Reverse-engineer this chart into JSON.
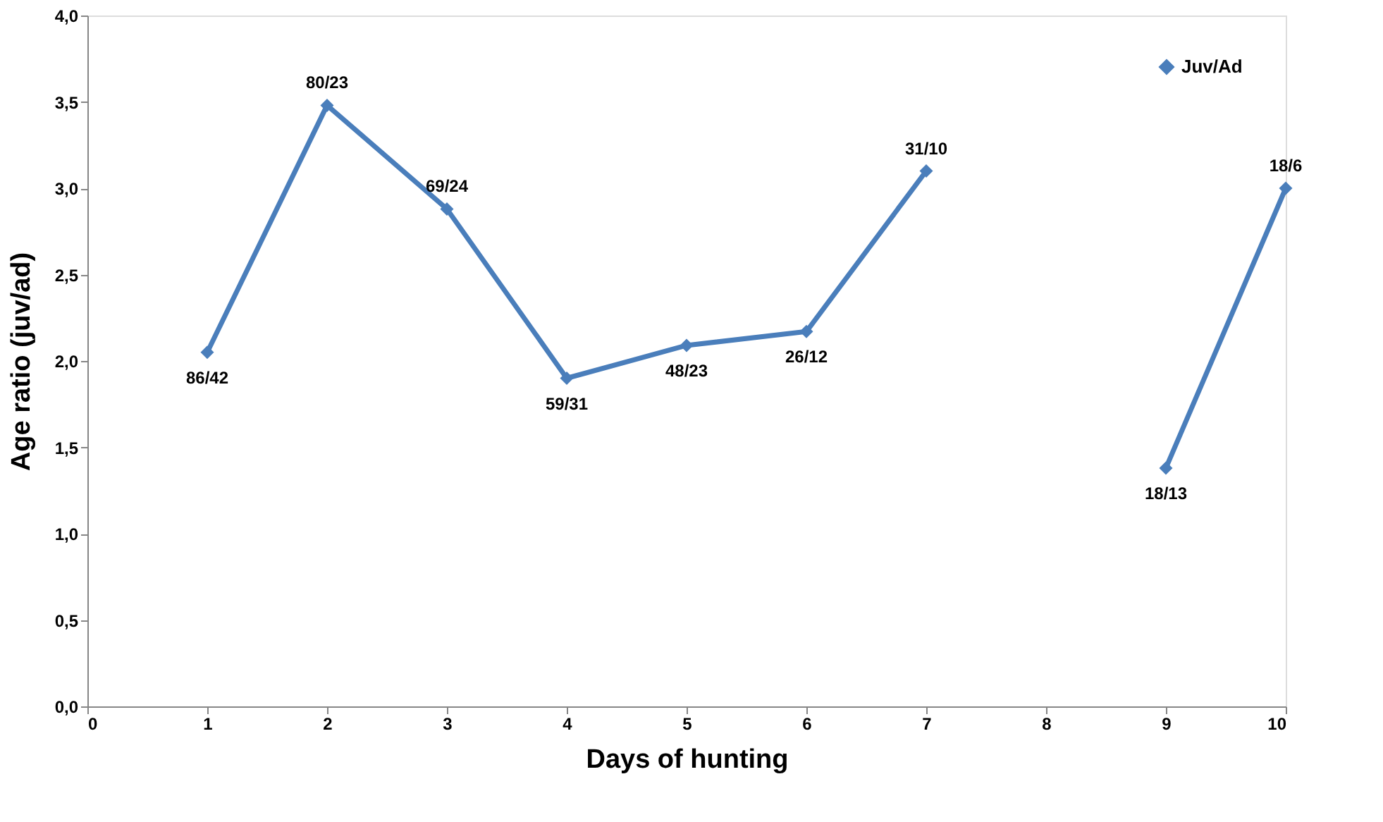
{
  "chart_data": {
    "type": "line",
    "xlabel": "Days of hunting",
    "ylabel": "Age ratio (juv/ad)",
    "x": [
      1,
      2,
      3,
      4,
      5,
      6,
      7,
      8,
      9,
      10
    ],
    "series": [
      {
        "name": "Juv/Ad",
        "color": "#4a7ebb",
        "values": [
          2.05,
          3.48,
          2.88,
          1.9,
          2.09,
          2.17,
          3.1,
          null,
          1.38,
          3.0
        ],
        "value_labels": [
          "86/42",
          "80/23",
          "69/24",
          "59/31",
          "48/23",
          "26/12",
          "31/10",
          null,
          "18/13",
          "18/6"
        ]
      }
    ],
    "xlim": [
      0,
      10
    ],
    "xticks": [
      0,
      1,
      2,
      3,
      4,
      5,
      6,
      7,
      8,
      9,
      10
    ],
    "ylim": [
      0,
      4
    ],
    "yticks": [
      {
        "value": 0,
        "label": "0,0"
      },
      {
        "value": 0.5,
        "label": "0,5"
      },
      {
        "value": 1,
        "label": "1,0"
      },
      {
        "value": 1.5,
        "label": "1,5"
      },
      {
        "value": 2,
        "label": "2,0"
      },
      {
        "value": 2.5,
        "label": "2,5"
      },
      {
        "value": 3,
        "label": "3,0"
      },
      {
        "value": 3.5,
        "label": "3,5"
      },
      {
        "value": 4,
        "label": "4,0"
      }
    ],
    "grid": false,
    "legend": "top right",
    "marker": "diamond",
    "line_style": "solid"
  }
}
